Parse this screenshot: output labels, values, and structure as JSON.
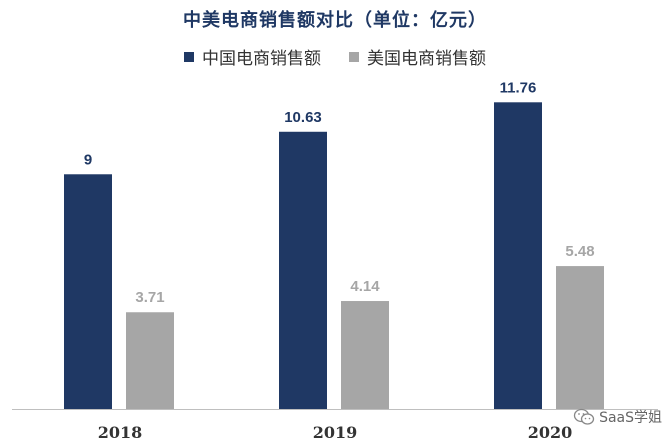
{
  "chart_data": {
    "type": "bar",
    "title": "中美电商销售额对比（单位：亿元）",
    "categories": [
      "2018",
      "2019",
      "2020"
    ],
    "series": [
      {
        "name": "中国电商销售额",
        "values": [
          9,
          10.63,
          11.76
        ],
        "color": "#1f3864",
        "label_color": "#1f3864"
      },
      {
        "name": "美国电商销售额",
        "values": [
          3.71,
          4.14,
          5.48
        ],
        "color": "#a6a6a6",
        "label_color": "#a6a6a6"
      }
    ],
    "value_labels": [
      [
        "9",
        "10.63",
        "11.76"
      ],
      [
        "3.71",
        "4.14",
        "5.48"
      ]
    ],
    "ylim": [
      0,
      12.5
    ],
    "grid": false,
    "legend_position": "top-center",
    "xlabel": "",
    "ylabel": ""
  },
  "watermark": {
    "text": "SaaS学姐",
    "icon": "wechat-icon"
  }
}
